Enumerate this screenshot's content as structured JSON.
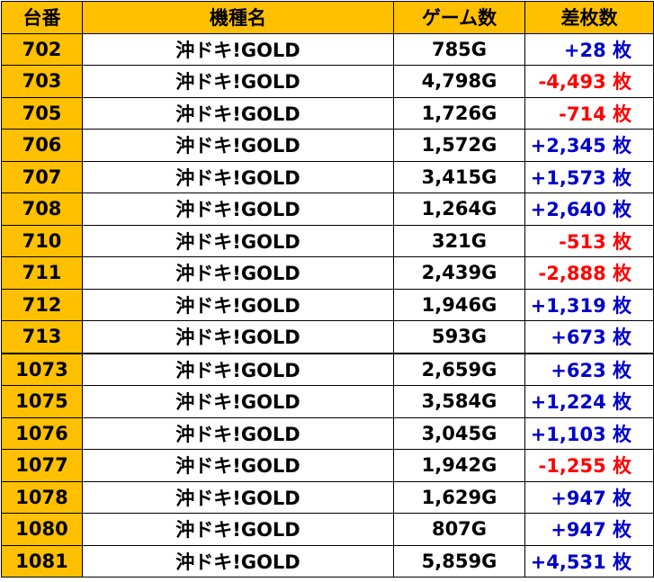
{
  "headers": [
    "台番",
    "機種名",
    "ゲーム数",
    "差枚数"
  ],
  "colors": {
    "header_bg": "#ffc000",
    "number_bg": "#ffc000",
    "negative": "#ff0000",
    "positive": "#0000cc"
  },
  "rows": [
    {
      "num": "702",
      "model": "沖ドキ!GOLD",
      "games": "785G",
      "diff": "+28 枚",
      "sign": "pos"
    },
    {
      "num": "703",
      "model": "沖ドキ!GOLD",
      "games": "4,798G",
      "diff": "-4,493 枚",
      "sign": "neg"
    },
    {
      "num": "705",
      "model": "沖ドキ!GOLD",
      "games": "1,726G",
      "diff": "-714 枚",
      "sign": "neg"
    },
    {
      "num": "706",
      "model": "沖ドキ!GOLD",
      "games": "1,572G",
      "diff": "+2,345 枚",
      "sign": "pos"
    },
    {
      "num": "707",
      "model": "沖ドキ!GOLD",
      "games": "3,415G",
      "diff": "+1,573 枚",
      "sign": "pos"
    },
    {
      "num": "708",
      "model": "沖ドキ!GOLD",
      "games": "1,264G",
      "diff": "+2,640 枚",
      "sign": "pos"
    },
    {
      "num": "710",
      "model": "沖ドキ!GOLD",
      "games": "321G",
      "diff": "-513 枚",
      "sign": "neg"
    },
    {
      "num": "711",
      "model": "沖ドキ!GOLD",
      "games": "2,439G",
      "diff": "-2,888 枚",
      "sign": "neg"
    },
    {
      "num": "712",
      "model": "沖ドキ!GOLD",
      "games": "1,946G",
      "diff": "+1,319 枚",
      "sign": "pos"
    },
    {
      "num": "713",
      "model": "沖ドキ!GOLD",
      "games": "593G",
      "diff": "+673 枚",
      "sign": "pos"
    },
    {
      "num": "1073",
      "model": "沖ドキ!GOLD",
      "games": "2,659G",
      "diff": "+623 枚",
      "sign": "pos"
    },
    {
      "num": "1075",
      "model": "沖ドキ!GOLD",
      "games": "3,584G",
      "diff": "+1,224 枚",
      "sign": "pos"
    },
    {
      "num": "1076",
      "model": "沖ドキ!GOLD",
      "games": "3,045G",
      "diff": "+1,103 枚",
      "sign": "pos"
    },
    {
      "num": "1077",
      "model": "沖ドキ!GOLD",
      "games": "1,942G",
      "diff": "-1,255 枚",
      "sign": "neg"
    },
    {
      "num": "1078",
      "model": "沖ドキ!GOLD",
      "games": "1,629G",
      "diff": "+947 枚",
      "sign": "pos"
    },
    {
      "num": "1080",
      "model": "沖ドキ!GOLD",
      "games": "807G",
      "diff": "+947 枚",
      "sign": "pos"
    },
    {
      "num": "1081",
      "model": "沖ドキ!GOLD",
      "games": "5,859G",
      "diff": "+4,531 枚",
      "sign": "pos"
    }
  ]
}
